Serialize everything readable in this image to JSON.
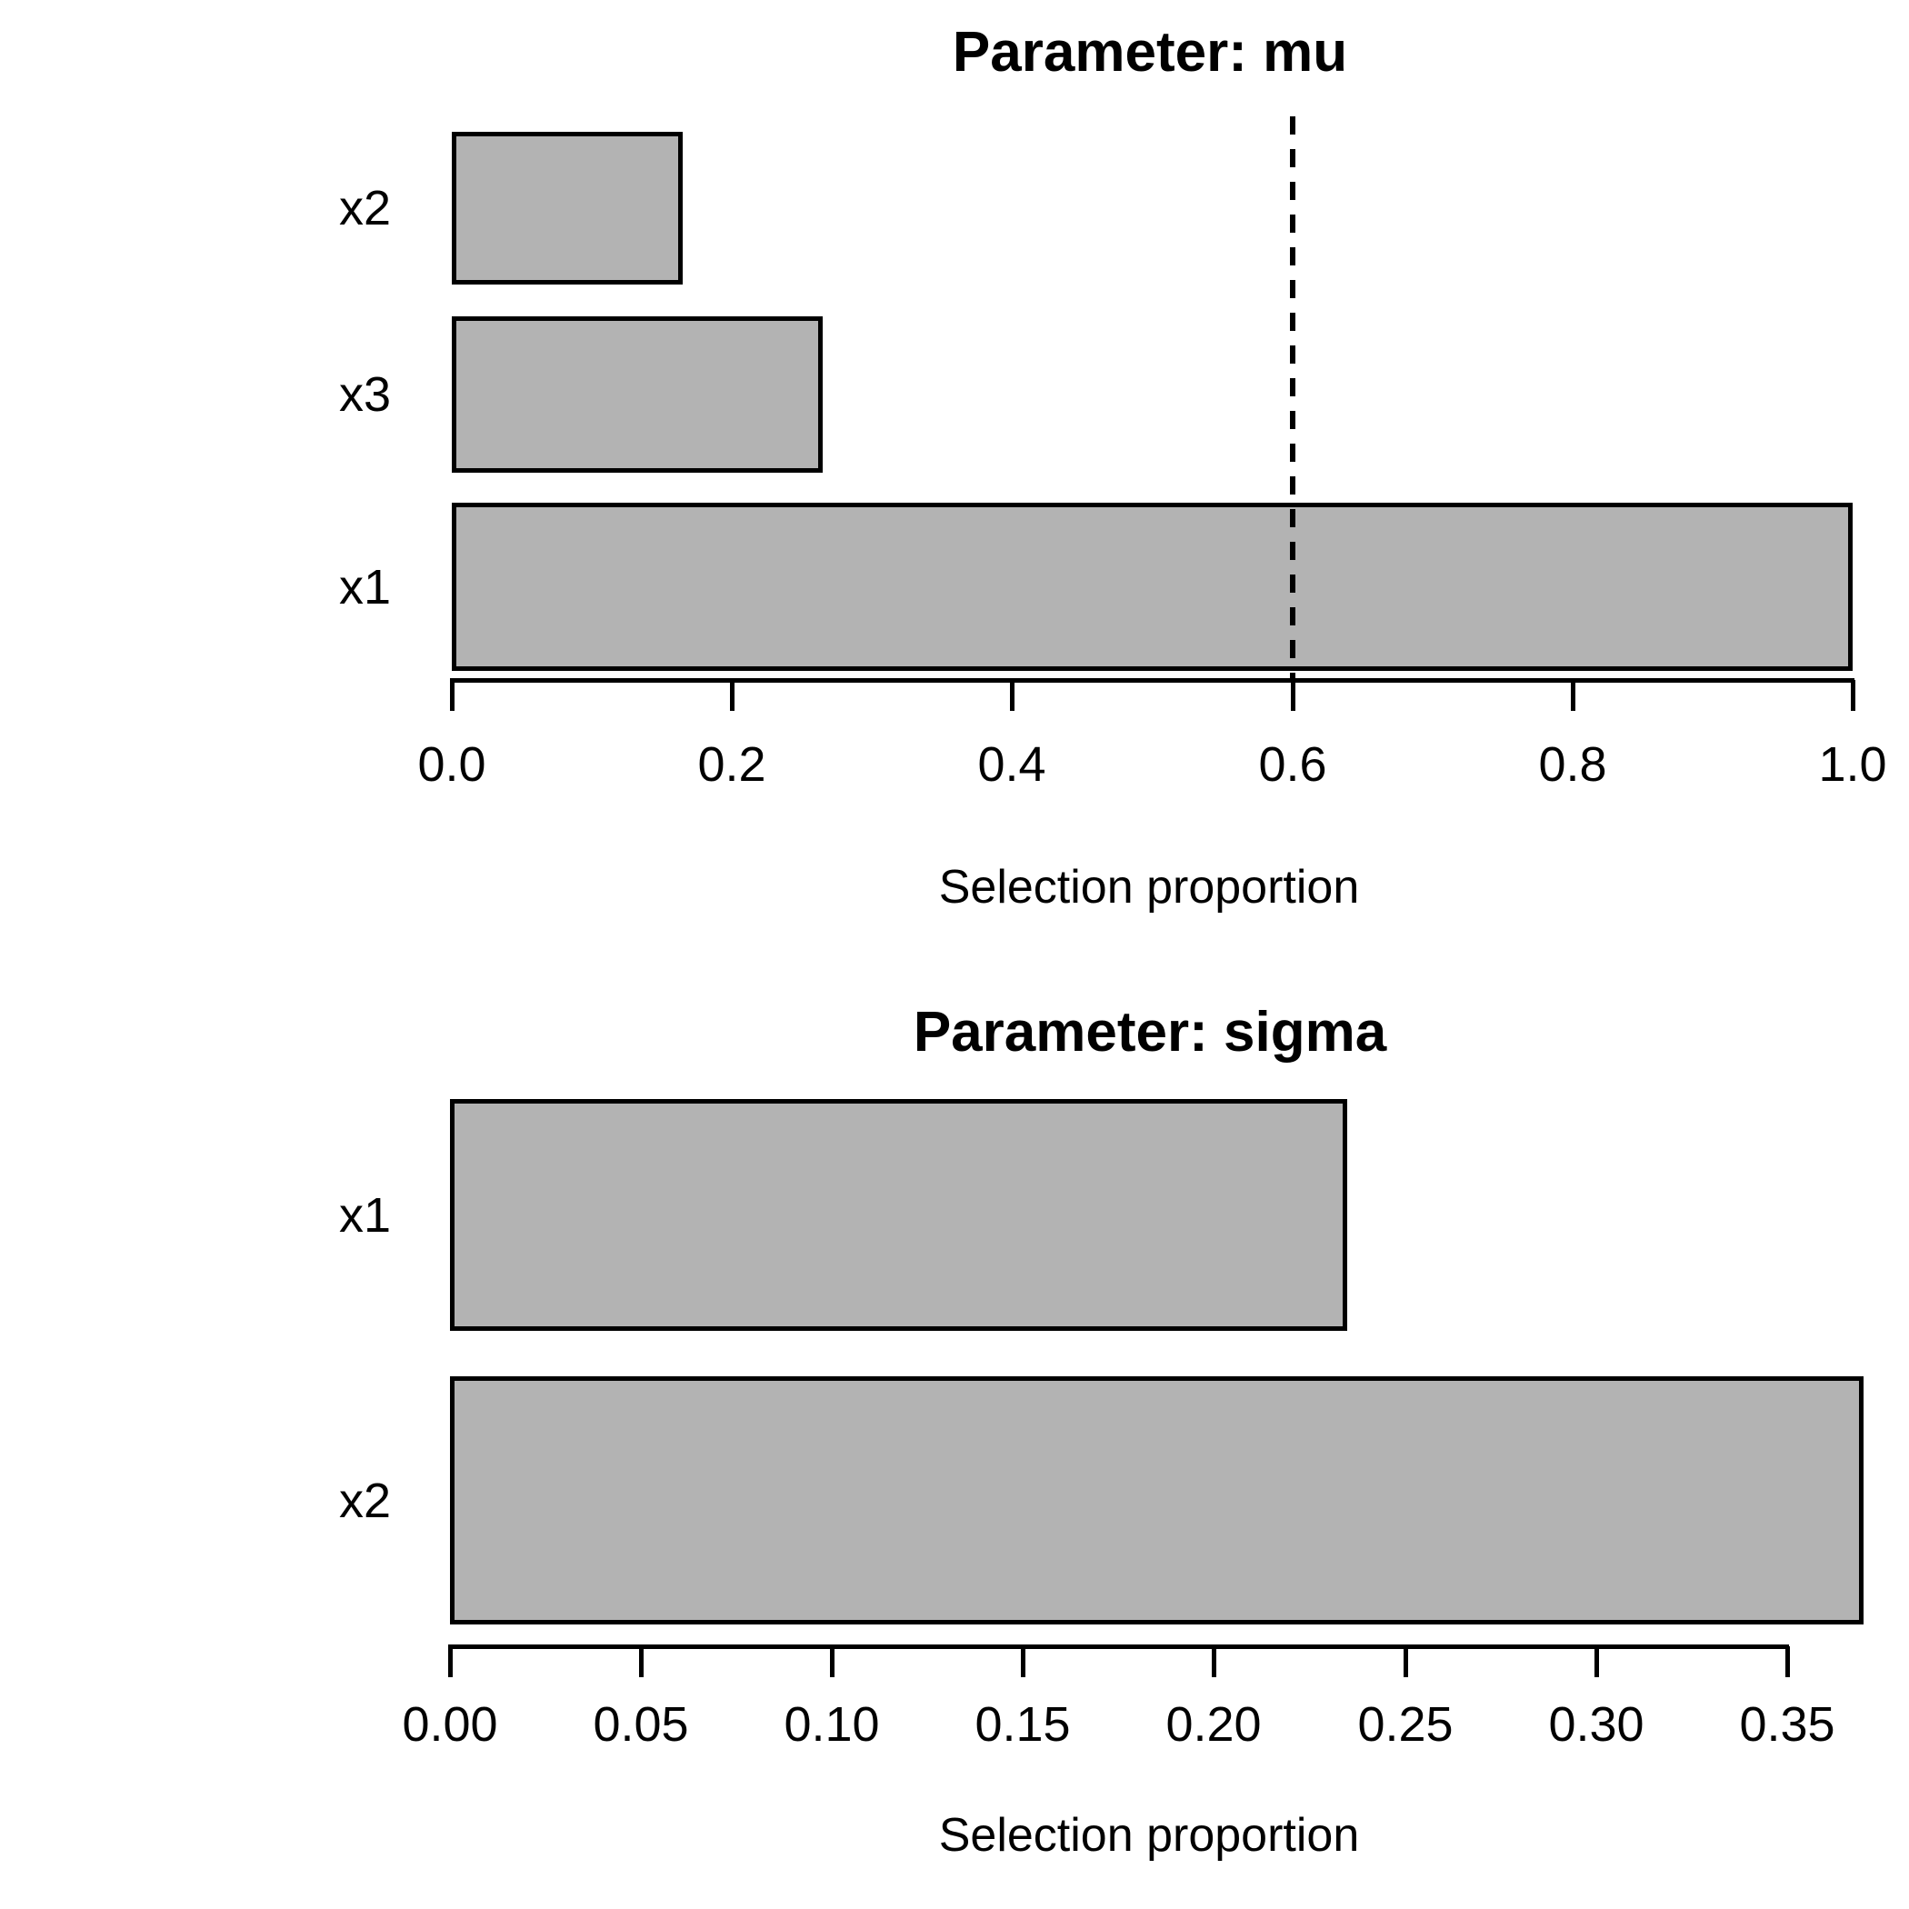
{
  "figure": {
    "background": "#ffffff",
    "bar_fill": "#b3b3b3",
    "bar_border": "#000000",
    "cutoff_line_color": "#000000",
    "text_color": "#000000"
  },
  "chart_data": [
    {
      "type": "bar",
      "orientation": "horizontal",
      "title": "Parameter: mu",
      "xlabel": "Selection proportion",
      "categories": [
        "x2",
        "x3",
        "x1"
      ],
      "values": [
        0.165,
        0.265,
        1.0
      ],
      "xlim": [
        0,
        1.0
      ],
      "xtick_values": [
        0.0,
        0.2,
        0.4,
        0.6,
        0.8,
        1.0
      ],
      "xtick_labels": [
        "0.0",
        "0.2",
        "0.4",
        "0.6",
        "0.8",
        "1.0"
      ],
      "cutoff": 0.6,
      "grid": false,
      "legend": null
    },
    {
      "type": "bar",
      "orientation": "horizontal",
      "title": "Parameter: sigma",
      "xlabel": "Selection proportion",
      "categories": [
        "x1",
        "x2"
      ],
      "values": [
        0.235,
        0.37
      ],
      "xlim": [
        0,
        0.37
      ],
      "xtick_values": [
        0.0,
        0.05,
        0.1,
        0.15,
        0.2,
        0.25,
        0.3,
        0.35
      ],
      "xtick_labels": [
        "0.00",
        "0.05",
        "0.10",
        "0.15",
        "0.20",
        "0.25",
        "0.30",
        "0.35"
      ],
      "cutoff": null,
      "grid": false,
      "legend": null
    }
  ]
}
